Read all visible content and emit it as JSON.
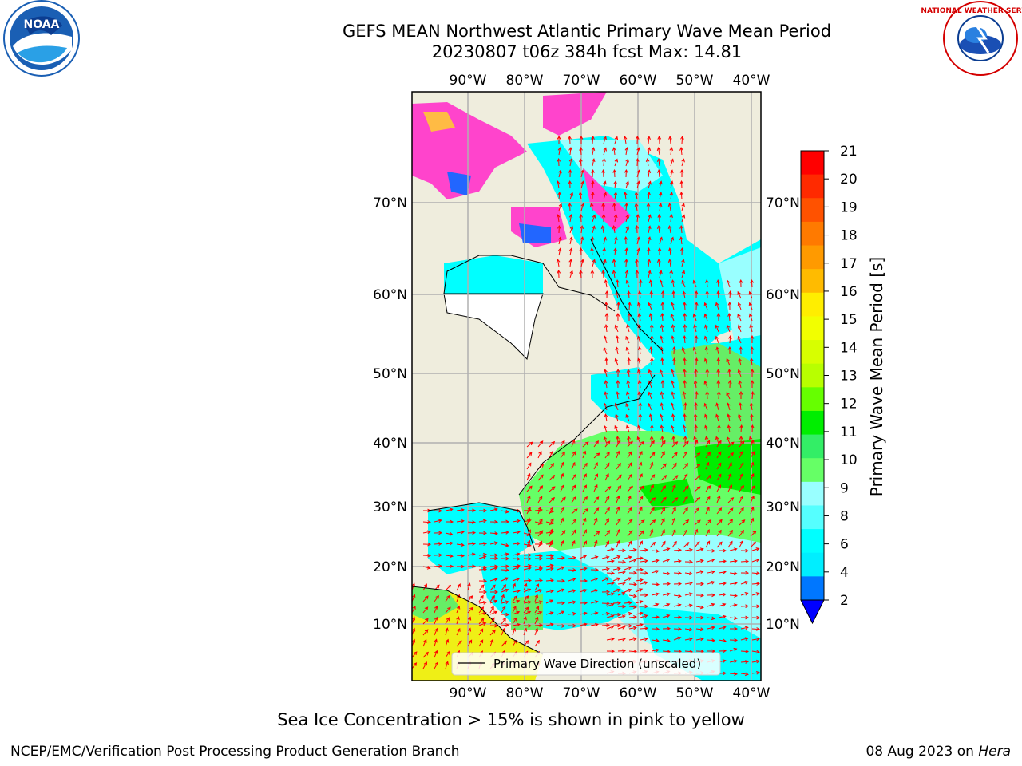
{
  "title_line1": "GEFS MEAN Northwest Atlantic Primary Wave Mean Period",
  "title_line2": "20230807 t06z 384h fcst   Max: 14.81",
  "subtitle": "Sea Ice Concentration > 15% is shown in pink to yellow",
  "footer_left": "NCEP/EMC/Verification Post Processing Product Generation Branch",
  "footer_right_date": "08 Aug 2023 on ",
  "footer_right_host": "Hera",
  "logos": {
    "left": "NOAA",
    "right": "NATIONAL WEATHER SERVICE"
  },
  "map": {
    "lon_labels": [
      "90°W",
      "80°W",
      "70°W",
      "60°W",
      "50°W",
      "40°W"
    ],
    "lat_labels": [
      "70°N",
      "60°N",
      "50°N",
      "40°N",
      "30°N",
      "20°N",
      "10°N"
    ],
    "legend_label": "Primary Wave Direction (unscaled)"
  },
  "colorbar": {
    "title": "Primary Wave Mean Period [s]",
    "ticks": [
      "21",
      "20",
      "19",
      "18",
      "17",
      "16",
      "15",
      "14",
      "13",
      "12",
      "11",
      "10",
      "9",
      "8",
      "6",
      "4",
      "2"
    ],
    "colors": [
      "#ff0000",
      "#ff2a00",
      "#ff5200",
      "#ff7a00",
      "#ff9a00",
      "#ffbb00",
      "#ffee00",
      "#f2ff00",
      "#d7ff00",
      "#b8ff00",
      "#66ff00",
      "#00ee00",
      "#33ee66",
      "#66ff66",
      "#99ffff",
      "#55ffff",
      "#00ffff",
      "#00eeff",
      "#0077ff"
    ],
    "extend_color": "#0000ff"
  },
  "colors": {
    "land": "#efeddd",
    "grid": "#b0b0b0",
    "arrows": "#ff0000",
    "sea_ice": "#ff44cc"
  }
}
